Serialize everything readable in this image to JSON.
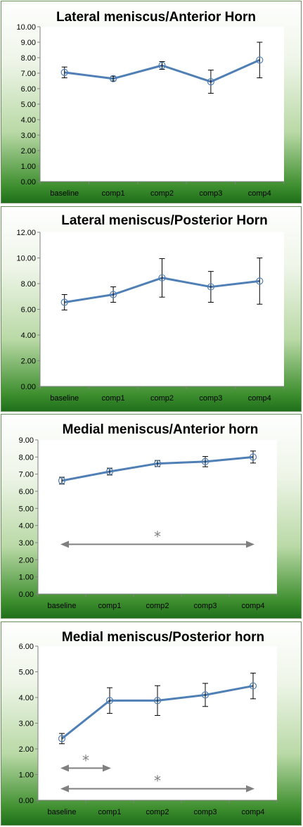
{
  "chart_data": [
    {
      "type": "line",
      "title": "Lateral meniscus/Anterior Horn",
      "categories": [
        "baseline",
        "comp1",
        "comp2",
        "comp3",
        "comp4"
      ],
      "ylim": [
        0,
        10
      ],
      "ystep": 1,
      "ydecimals": 2,
      "yticks": [
        "0.00",
        "1.00",
        "2.00",
        "3.00",
        "4.00",
        "5.00",
        "6.00",
        "7.00",
        "8.00",
        "9.00",
        "10.00"
      ],
      "values": [
        7.05,
        6.65,
        7.5,
        6.45,
        7.85
      ],
      "error": [
        0.35,
        0.15,
        0.25,
        0.75,
        1.15
      ],
      "grid": false,
      "color": "#4f7fb5",
      "significance": []
    },
    {
      "type": "line",
      "title": "Lateral meniscus/Posterior Horn",
      "categories": [
        "baseline",
        "comp1",
        "comp2",
        "comp3",
        "comp4"
      ],
      "ylim": [
        0,
        12
      ],
      "ystep": 2,
      "ydecimals": 2,
      "yticks": [
        "0.00",
        "2.00",
        "4.00",
        "6.00",
        "8.00",
        "10.00",
        "12.00"
      ],
      "values": [
        6.55,
        7.15,
        8.45,
        7.75,
        8.2
      ],
      "error": [
        0.6,
        0.6,
        1.5,
        1.2,
        1.8
      ],
      "grid": false,
      "color": "#4f7fb5",
      "significance": []
    },
    {
      "type": "line",
      "title": "Medial meniscus/Anterior horn",
      "categories": [
        "baseline",
        "comp1",
        "comp2",
        "comp3",
        "comp4"
      ],
      "ylim": [
        0,
        9
      ],
      "ystep": 1,
      "ydecimals": 2,
      "yticks": [
        "0.00",
        "1.00",
        "2.00",
        "3.00",
        "4.00",
        "5.00",
        "6.00",
        "7.00",
        "8.00",
        "9.00"
      ],
      "values": [
        6.62,
        7.15,
        7.62,
        7.73,
        8.0
      ],
      "error": [
        0.2,
        0.2,
        0.18,
        0.3,
        0.35
      ],
      "grid": false,
      "color": "#4f7fb5",
      "significance": [
        {
          "from": "baseline",
          "to": "comp4",
          "y": 2.9,
          "label": "*"
        }
      ]
    },
    {
      "type": "line",
      "title": "Medial meniscus/Posterior horn",
      "categories": [
        "baseline",
        "comp1",
        "comp2",
        "comp3",
        "comp4"
      ],
      "ylim": [
        0,
        6
      ],
      "ystep": 1,
      "ydecimals": 2,
      "yticks": [
        "0.00",
        "1.00",
        "2.00",
        "3.00",
        "4.00",
        "5.00",
        "6.00"
      ],
      "values": [
        2.4,
        3.88,
        3.88,
        4.1,
        4.45
      ],
      "error": [
        0.2,
        0.5,
        0.58,
        0.45,
        0.5
      ],
      "grid": false,
      "color": "#4f7fb5",
      "significance": [
        {
          "from": "baseline",
          "to": "comp1",
          "y": 1.25,
          "label": "*"
        },
        {
          "from": "baseline",
          "to": "comp4",
          "y": 0.45,
          "label": "*"
        }
      ]
    }
  ]
}
